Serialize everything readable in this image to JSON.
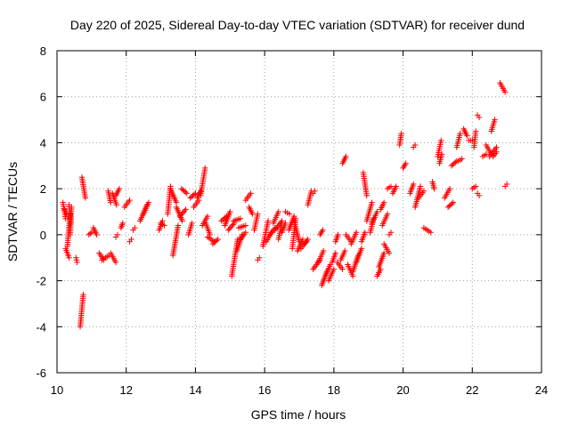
{
  "chart_data": {
    "type": "scatter",
    "title": "Day 220 of 2025, Sidereal Day-to-day VTEC variation (SDTVAR) for receiver dund",
    "xlabel": "GPS time / hours",
    "ylabel": "SDTVAR / TECUs",
    "xlim": [
      10,
      24
    ],
    "ylim": [
      -6,
      8
    ],
    "xticks": [
      10,
      12,
      14,
      16,
      18,
      20,
      22,
      24
    ],
    "yticks": [
      -6,
      -4,
      -2,
      0,
      2,
      4,
      6,
      8
    ],
    "xtick_labels": [
      "10",
      "12",
      "14",
      "16",
      "18",
      "20",
      "22",
      "24"
    ],
    "ytick_labels": [
      "-6",
      "-4",
      "-2",
      "0",
      "2",
      "4",
      "6",
      "8"
    ],
    "grid": true,
    "marker": "plus",
    "color": "#ff0000",
    "segments": [
      [
        10.17,
        1.4,
        10.25,
        0.7
      ],
      [
        10.22,
        1.1,
        10.27,
        0.9
      ],
      [
        10.25,
        -0.6,
        10.35,
        -1.0
      ],
      [
        10.3,
        -0.5,
        10.38,
        0.9
      ],
      [
        10.35,
        1.3,
        10.4,
        0.5
      ],
      [
        10.38,
        0.0,
        10.42,
        1.2
      ],
      [
        10.55,
        -1.0,
        10.58,
        -1.2
      ],
      [
        10.67,
        -4.0,
        10.76,
        -2.6
      ],
      [
        10.72,
        2.5,
        10.82,
        1.6
      ],
      [
        10.92,
        0.0,
        11.0,
        0.1
      ],
      [
        11.05,
        0.3,
        11.15,
        0.0
      ],
      [
        11.22,
        -0.8,
        11.35,
        -1.1
      ],
      [
        11.3,
        -1.1,
        11.5,
        -0.9
      ],
      [
        11.48,
        1.9,
        11.55,
        1.4
      ],
      [
        11.55,
        -0.8,
        11.7,
        -1.2
      ],
      [
        11.6,
        1.8,
        11.72,
        1.3
      ],
      [
        11.7,
        1.7,
        11.8,
        2.0
      ],
      [
        11.7,
        -0.1,
        11.75,
        0.0
      ],
      [
        11.85,
        0.3,
        11.9,
        0.5
      ],
      [
        11.95,
        1.2,
        12.1,
        1.5
      ],
      [
        12.1,
        -0.3,
        12.15,
        -0.2
      ],
      [
        12.2,
        0.2,
        12.25,
        0.3
      ],
      [
        12.4,
        0.6,
        12.6,
        1.3
      ],
      [
        12.5,
        0.9,
        12.65,
        1.4
      ],
      [
        12.95,
        0.2,
        13.05,
        0.6
      ],
      [
        13.0,
        0.5,
        13.1,
        0.4
      ],
      [
        13.2,
        0.9,
        13.28,
        2.1
      ],
      [
        13.28,
        2.0,
        13.45,
        1.4
      ],
      [
        13.35,
        -0.9,
        13.5,
        0.4
      ],
      [
        13.45,
        1.2,
        13.62,
        0.6
      ],
      [
        13.55,
        0.8,
        13.72,
        1.1
      ],
      [
        13.6,
        2.0,
        13.75,
        1.8
      ],
      [
        13.8,
        0.0,
        13.9,
        0.5
      ],
      [
        13.85,
        1.6,
        14.0,
        1.8
      ],
      [
        13.95,
        1.2,
        14.1,
        1.5
      ],
      [
        14.05,
        1.6,
        14.15,
        1.9
      ],
      [
        14.15,
        1.7,
        14.28,
        2.9
      ],
      [
        14.2,
        0.4,
        14.35,
        0.8
      ],
      [
        14.3,
        0.5,
        14.42,
        0.0
      ],
      [
        14.35,
        -0.1,
        14.55,
        -0.3
      ],
      [
        14.5,
        -0.4,
        14.65,
        -0.2
      ],
      [
        14.75,
        0.6,
        14.9,
        0.8
      ],
      [
        14.85,
        0.4,
        15.0,
        1.0
      ],
      [
        14.95,
        0.2,
        15.12,
        0.5
      ],
      [
        15.05,
        -1.8,
        15.22,
        -0.2
      ],
      [
        15.1,
        0.6,
        15.3,
        0.7
      ],
      [
        15.2,
        -0.7,
        15.35,
        0.0
      ],
      [
        15.25,
        0.3,
        15.45,
        0.4
      ],
      [
        15.3,
        -0.2,
        15.45,
        0.1
      ],
      [
        15.45,
        1.5,
        15.6,
        1.8
      ],
      [
        15.55,
        1.2,
        15.65,
        0.9
      ],
      [
        15.7,
        0.2,
        15.8,
        0.9
      ],
      [
        15.8,
        -1.1,
        15.85,
        -1.0
      ],
      [
        15.95,
        -0.5,
        16.1,
        0.6
      ],
      [
        16.05,
        -0.3,
        16.2,
        0.1
      ],
      [
        16.15,
        0.0,
        16.3,
        0.3
      ],
      [
        16.25,
        0.5,
        16.4,
        1.0
      ],
      [
        16.3,
        0.2,
        16.5,
        0.6
      ],
      [
        16.4,
        -0.2,
        16.5,
        0.5
      ],
      [
        16.5,
        0.1,
        16.6,
        0.5
      ],
      [
        16.6,
        1.0,
        16.72,
        0.9
      ],
      [
        16.7,
        0.2,
        16.85,
        0.8
      ],
      [
        16.8,
        -0.6,
        16.9,
        0.7
      ],
      [
        16.85,
        0.6,
        17.0,
        -0.3
      ],
      [
        16.95,
        -0.7,
        17.1,
        -0.2
      ],
      [
        17.05,
        -0.6,
        17.2,
        -0.3
      ],
      [
        17.15,
        -0.4,
        17.25,
        -0.2
      ],
      [
        17.25,
        1.3,
        17.35,
        1.9
      ],
      [
        17.4,
        1.8,
        17.45,
        1.9
      ],
      [
        17.4,
        -1.5,
        17.6,
        -1.1
      ],
      [
        17.55,
        -1.2,
        17.7,
        -0.7
      ],
      [
        17.6,
        0.0,
        17.68,
        0.2
      ],
      [
        17.65,
        -2.2,
        17.8,
        -1.6
      ],
      [
        17.72,
        -1.9,
        17.9,
        -1.3
      ],
      [
        17.85,
        -2.0,
        18.0,
        -1.5
      ],
      [
        17.95,
        -1.2,
        18.05,
        -0.8
      ],
      [
        18.05,
        -0.3,
        18.12,
        0.0
      ],
      [
        18.1,
        -1.2,
        18.25,
        -1.5
      ],
      [
        18.2,
        -1.1,
        18.32,
        -0.7
      ],
      [
        18.25,
        3.1,
        18.35,
        3.4
      ],
      [
        18.35,
        0.0,
        18.5,
        -0.3
      ],
      [
        18.4,
        -1.3,
        18.55,
        -1.8
      ],
      [
        18.5,
        -0.4,
        18.65,
        0.1
      ],
      [
        18.55,
        -1.6,
        18.7,
        -0.9
      ],
      [
        18.65,
        -1.2,
        18.8,
        -0.6
      ],
      [
        18.8,
        -0.3,
        18.9,
        0.1
      ],
      [
        18.85,
        2.7,
        18.95,
        1.7
      ],
      [
        18.95,
        0.6,
        19.1,
        1.4
      ],
      [
        19.05,
        0.1,
        19.15,
        0.7
      ],
      [
        19.1,
        0.5,
        19.25,
        1.0
      ],
      [
        19.25,
        -1.8,
        19.35,
        -1.5
      ],
      [
        19.3,
        -1.4,
        19.45,
        -0.8
      ],
      [
        19.35,
        1.1,
        19.45,
        1.4
      ],
      [
        19.4,
        0.4,
        19.55,
        0.9
      ],
      [
        19.45,
        -0.4,
        19.6,
        -0.8
      ],
      [
        19.55,
        2.0,
        19.65,
        2.1
      ],
      [
        19.6,
        0.0,
        19.65,
        0.1
      ],
      [
        19.7,
        1.8,
        19.8,
        2.1
      ],
      [
        19.9,
        3.9,
        19.95,
        4.4
      ],
      [
        20.0,
        2.9,
        20.08,
        3.1
      ],
      [
        20.2,
        1.8,
        20.3,
        2.2
      ],
      [
        20.3,
        3.8,
        20.35,
        3.9
      ],
      [
        20.35,
        1.2,
        20.5,
        2.1
      ],
      [
        20.45,
        1.6,
        20.6,
        1.9
      ],
      [
        20.6,
        0.3,
        20.8,
        0.1
      ],
      [
        20.85,
        2.3,
        20.9,
        2.0
      ],
      [
        21.0,
        3.4,
        21.1,
        4.1
      ],
      [
        21.05,
        3.1,
        21.12,
        3.5
      ],
      [
        21.2,
        1.6,
        21.35,
        2.0
      ],
      [
        21.3,
        1.2,
        21.45,
        1.4
      ],
      [
        21.4,
        3.0,
        21.55,
        3.2
      ],
      [
        21.55,
        3.8,
        21.65,
        4.4
      ],
      [
        21.6,
        3.2,
        21.7,
        3.3
      ],
      [
        21.75,
        4.6,
        21.85,
        4.3
      ],
      [
        21.9,
        4.1,
        22.0,
        4.1
      ],
      [
        22.0,
        2.0,
        22.1,
        2.1
      ],
      [
        22.05,
        3.8,
        22.1,
        4.5
      ],
      [
        22.15,
        5.2,
        22.2,
        5.1
      ],
      [
        22.15,
        1.8,
        22.2,
        1.7
      ],
      [
        22.3,
        3.4,
        22.4,
        3.5
      ],
      [
        22.4,
        3.9,
        22.55,
        3.5
      ],
      [
        22.5,
        3.4,
        22.7,
        3.8
      ],
      [
        22.55,
        4.5,
        22.65,
        5.0
      ],
      [
        22.6,
        3.4,
        22.7,
        3.6
      ],
      [
        22.8,
        6.6,
        22.95,
        6.2
      ],
      [
        22.95,
        2.1,
        23.0,
        2.2
      ]
    ]
  }
}
